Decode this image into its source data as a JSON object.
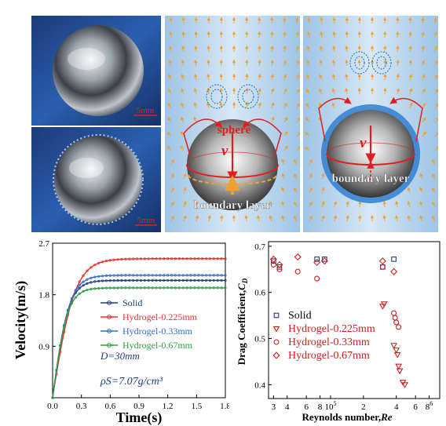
{
  "photos": {
    "top_scale": "5mm",
    "bottom_scale": "5mm"
  },
  "flow_left": {
    "sphere_label": "sphere",
    "velocity_symbol": "v",
    "boundary_label": "boundary layer"
  },
  "flow_right": {
    "velocity_symbol": "v",
    "boundary_label": "boundary layer"
  },
  "colors": {
    "water": "#bcd8ee",
    "arrows": "#f0a030",
    "vortex": "#1a6fb5",
    "sphere_line": "#e02020",
    "solid": "#1f3f7a",
    "hydrogel_0225": "#e83030",
    "hydrogel_033": "#2f6fc9",
    "hydrogel_067": "#2e9e3e",
    "drag_markers": "#cc2020"
  },
  "chart_data": [
    {
      "type": "line",
      "xlabel": "Time(s)",
      "ylabel": "Velocity(m/s)",
      "xlim": [
        0,
        1.8
      ],
      "ylim": [
        0,
        2.7
      ],
      "xticks": [
        "0.0",
        "0.3",
        "0.6",
        "0.9",
        "1.2",
        "1.5",
        "1.8"
      ],
      "yticks": [
        "0.9",
        "1.8",
        "2.7"
      ],
      "legend_placement": "right",
      "annotations": [
        "D=30mm",
        "ρS=7.07g/cm³"
      ],
      "series": [
        {
          "name": "Solid",
          "color": "#1f3f7a",
          "terminal": 2.05,
          "tau": 0.14
        },
        {
          "name": "Hydrogel-0.225mm",
          "color": "#e83030",
          "terminal": 2.43,
          "tau": 0.2
        },
        {
          "name": "Hydrogel-0.33mm",
          "color": "#2f6fc9",
          "terminal": 2.14,
          "tau": 0.15
        },
        {
          "name": "Hydrogel-0.67mm",
          "color": "#2e9e3e",
          "terminal": 1.92,
          "tau": 0.13
        }
      ]
    },
    {
      "type": "scatter",
      "xlabel": "Reynolds number,",
      "xlabel_symbol": "Re",
      "ylabel": "Drag Coefficient,",
      "ylabel_symbol": "C",
      "ylabel_subscript": "D",
      "x_scale": "log",
      "xlim": [
        27000,
        1000000
      ],
      "ylim": [
        0.37,
        0.71
      ],
      "yticks": [
        "0.4",
        "0.5",
        "0.6",
        "0.7"
      ],
      "xtick_labels": [
        {
          "label": "3",
          "value": 30000
        },
        {
          "label": "4",
          "value": 40000
        },
        {
          "label": "6",
          "value": 60000
        },
        {
          "label": "8",
          "value": 80000
        },
        {
          "label": "10",
          "sup": "5",
          "value": 100000
        },
        {
          "label": "2",
          "value": 200000
        },
        {
          "label": "4",
          "value": 400000
        },
        {
          "label": "6",
          "value": 600000
        },
        {
          "label": "8",
          "sup": "6",
          "value": 800000
        }
      ],
      "legend_placement": "center-left",
      "series": [
        {
          "name": "Solid",
          "marker": "square",
          "color": "#1f3f7a",
          "points": [
            [
              30000,
              0.668
            ],
            [
              34000,
              0.655
            ],
            [
              75000,
              0.672
            ],
            [
              88000,
              0.672
            ],
            [
              300000,
              0.655
            ],
            [
              380000,
              0.672
            ]
          ]
        },
        {
          "name": "Hydrogel-0.225mm",
          "marker": "triangle",
          "color": "#cc2020",
          "points": [
            [
              300000,
              0.57
            ],
            [
              310000,
              0.575
            ],
            [
              380000,
              0.485
            ],
            [
              400000,
              0.475
            ],
            [
              410000,
              0.465
            ],
            [
              420000,
              0.44
            ],
            [
              430000,
              0.43
            ],
            [
              460000,
              0.405
            ],
            [
              480000,
              0.4
            ]
          ]
        },
        {
          "name": "Hydrogel-0.33mm",
          "marker": "circle",
          "color": "#cc2020",
          "points": [
            [
              30000,
              0.66
            ],
            [
              34000,
              0.65
            ],
            [
              50000,
              0.645
            ],
            [
              75000,
              0.63
            ],
            [
              300000,
              0.655
            ],
            [
              380000,
              0.555
            ],
            [
              390000,
              0.545
            ],
            [
              400000,
              0.535
            ],
            [
              420000,
              0.525
            ]
          ]
        },
        {
          "name": "Hydrogel-0.67mm",
          "marker": "diamond",
          "color": "#cc2020",
          "points": [
            [
              30000,
              0.672
            ],
            [
              34000,
              0.66
            ],
            [
              50000,
              0.677
            ],
            [
              75000,
              0.665
            ],
            [
              88000,
              0.668
            ],
            [
              300000,
              0.668
            ],
            [
              380000,
              0.645
            ]
          ]
        }
      ]
    }
  ]
}
